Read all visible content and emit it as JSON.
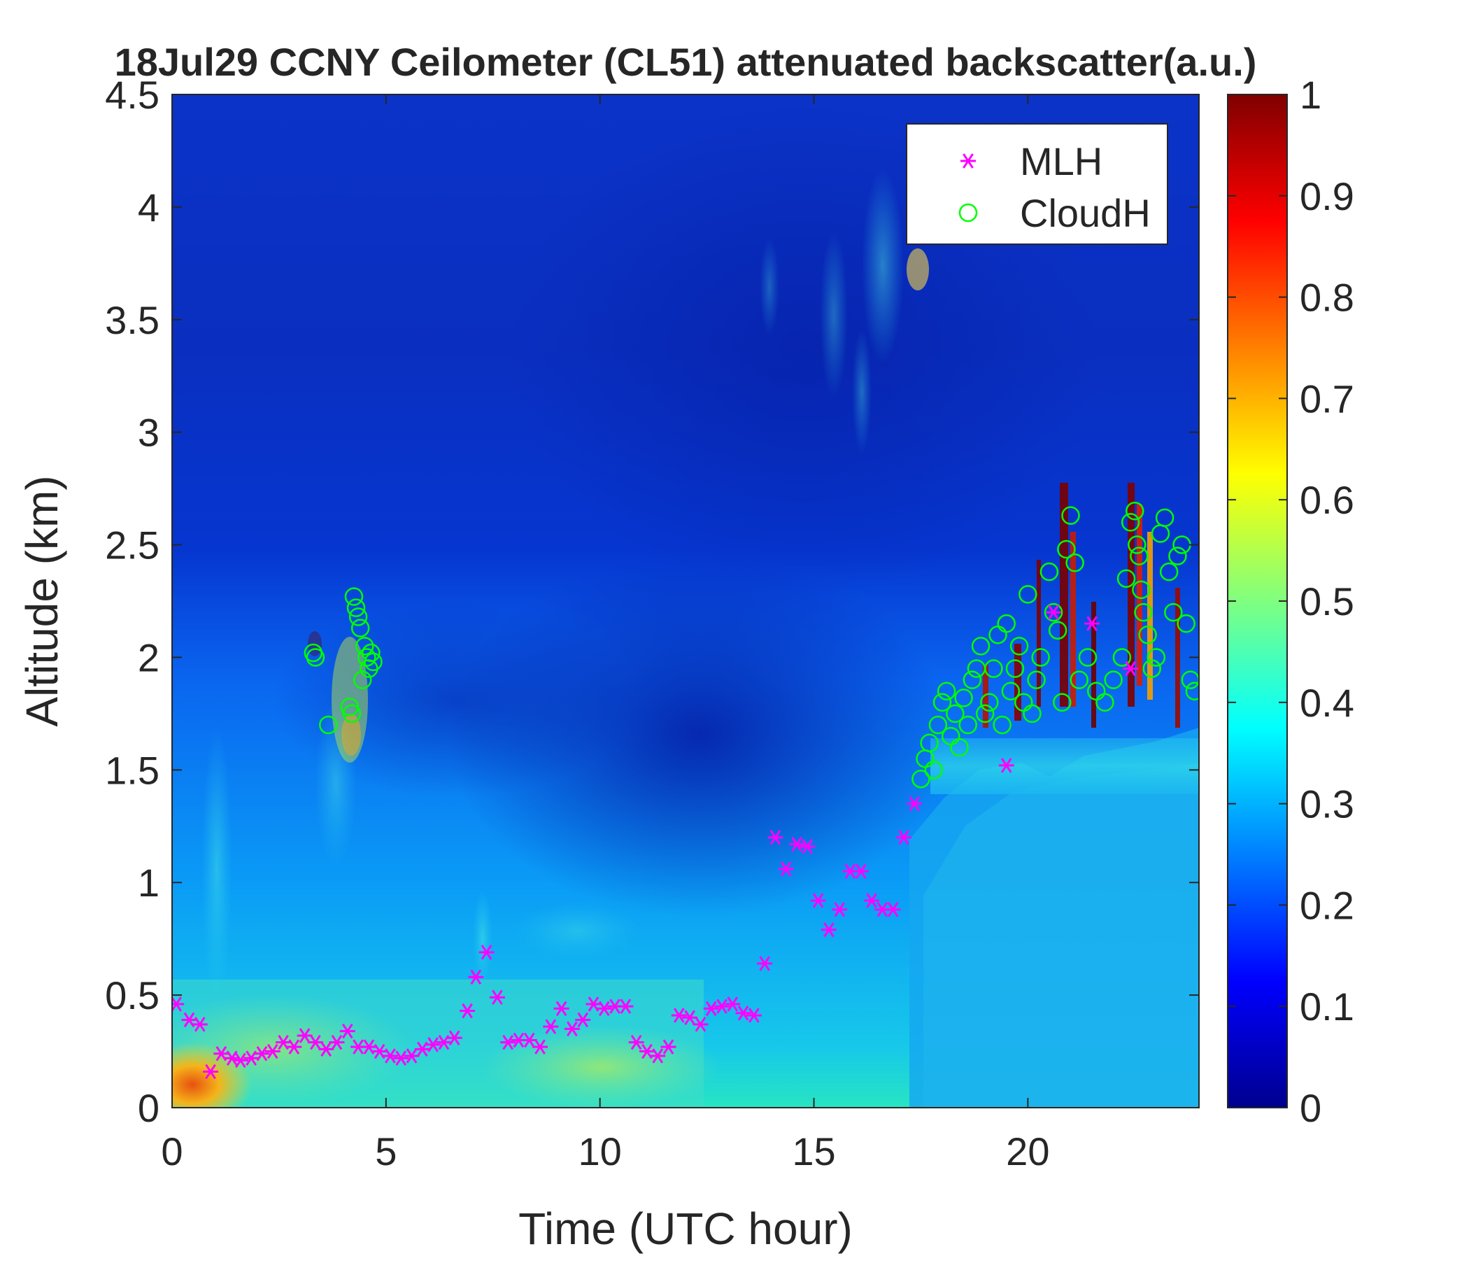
{
  "chart_data": {
    "type": "heatmap",
    "title": "18Jul29 CCNY Ceilometer (CL51) attenuated backscatter(a.u.)",
    "xlabel": "Time (UTC hour)",
    "ylabel": "Altitude (km)",
    "xlim": [
      0,
      24
    ],
    "ylim": [
      0,
      4.5
    ],
    "xticks": [
      0,
      5,
      10,
      15,
      20
    ],
    "xtick_labels": [
      "0",
      "5",
      "10",
      "15",
      "20"
    ],
    "yticks": [
      0,
      0.5,
      1,
      1.5,
      2,
      2.5,
      3,
      3.5,
      4,
      4.5
    ],
    "ytick_labels": [
      "0",
      "0.5",
      "1",
      "1.5",
      "2",
      "2.5",
      "3",
      "3.5",
      "4",
      "4.5"
    ],
    "colorbar": {
      "colormap": "jet",
      "range": [
        0,
        1
      ],
      "ticks": [
        0,
        0.1,
        0.2,
        0.3,
        0.4,
        0.5,
        0.6,
        0.7,
        0.8,
        0.9,
        1
      ],
      "tick_labels": [
        "0",
        "0.1",
        "0.2",
        "0.3",
        "0.4",
        "0.5",
        "0.6",
        "0.7",
        "0.8",
        "0.9",
        "1"
      ]
    },
    "legend": {
      "placement": "top-right",
      "entries": [
        {
          "label": "MLH",
          "marker": "asterisk",
          "color": "#ff00ff"
        },
        {
          "label": "CloudH",
          "marker": "circle",
          "color": "#00ff00"
        }
      ]
    },
    "series": [
      {
        "name": "MLH",
        "x": [
          0.1,
          0.4,
          0.65,
          0.9,
          1.15,
          1.4,
          1.6,
          1.85,
          2.1,
          2.35,
          2.6,
          2.85,
          3.1,
          3.35,
          3.6,
          3.85,
          4.1,
          4.35,
          4.6,
          4.85,
          5.1,
          5.35,
          5.6,
          5.85,
          6.1,
          6.35,
          6.6,
          6.9,
          7.1,
          7.35,
          7.6,
          7.85,
          8.1,
          8.35,
          8.6,
          8.85,
          9.1,
          9.35,
          9.6,
          9.85,
          10.1,
          10.35,
          10.6,
          10.85,
          11.1,
          11.35,
          11.6,
          11.85,
          12.1,
          12.35,
          12.6,
          12.85,
          13.1,
          13.35,
          13.6,
          13.85,
          14.1,
          14.35,
          14.6,
          14.85,
          15.1,
          15.35,
          15.6,
          15.85,
          16.1,
          16.35,
          16.6,
          16.85,
          17.1,
          17.35,
          19.5,
          20.6,
          21.5,
          22.4
        ],
        "y": [
          0.46,
          0.39,
          0.37,
          0.16,
          0.24,
          0.22,
          0.21,
          0.22,
          0.24,
          0.25,
          0.29,
          0.27,
          0.32,
          0.29,
          0.26,
          0.29,
          0.34,
          0.27,
          0.27,
          0.25,
          0.23,
          0.22,
          0.23,
          0.26,
          0.28,
          0.29,
          0.31,
          0.43,
          0.58,
          0.69,
          0.49,
          0.29,
          0.3,
          0.3,
          0.27,
          0.36,
          0.44,
          0.35,
          0.39,
          0.46,
          0.44,
          0.45,
          0.45,
          0.29,
          0.25,
          0.23,
          0.27,
          0.41,
          0.4,
          0.37,
          0.44,
          0.45,
          0.46,
          0.42,
          0.41,
          0.64,
          1.2,
          1.06,
          1.17,
          1.16,
          0.92,
          0.79,
          0.88,
          1.05,
          1.05,
          0.92,
          0.88,
          0.88,
          1.2,
          1.35,
          1.52,
          2.2,
          2.15,
          1.95
        ]
      },
      {
        "name": "CloudH",
        "x": [
          3.3,
          3.35,
          3.65,
          4.15,
          4.2,
          4.25,
          4.3,
          4.35,
          4.4,
          4.45,
          4.5,
          4.55,
          4.6,
          4.65,
          4.7,
          17.5,
          17.6,
          17.7,
          17.8,
          17.9,
          18.0,
          18.1,
          18.2,
          18.3,
          18.4,
          18.5,
          18.6,
          18.7,
          18.8,
          18.9,
          19.0,
          19.1,
          19.2,
          19.3,
          19.4,
          19.5,
          19.6,
          19.7,
          19.8,
          19.9,
          20.0,
          20.1,
          20.2,
          20.3,
          20.5,
          20.6,
          20.7,
          20.8,
          20.9,
          21.0,
          21.1,
          21.2,
          21.4,
          21.6,
          21.8,
          22.0,
          22.2,
          22.3,
          22.4,
          22.5,
          22.55,
          22.6,
          22.65,
          22.7,
          22.8,
          22.9,
          23.0,
          23.1,
          23.2,
          23.3,
          23.4,
          23.5,
          23.6,
          23.7,
          23.8,
          23.9
        ],
        "y": [
          2.02,
          2.0,
          1.7,
          1.78,
          1.75,
          2.27,
          2.22,
          2.18,
          2.13,
          1.9,
          2.05,
          2.0,
          1.95,
          2.02,
          1.98,
          1.46,
          1.55,
          1.62,
          1.5,
          1.7,
          1.8,
          1.85,
          1.65,
          1.75,
          1.6,
          1.82,
          1.7,
          1.9,
          1.95,
          2.05,
          1.75,
          1.8,
          1.95,
          2.1,
          1.7,
          2.15,
          1.85,
          1.95,
          2.05,
          1.8,
          2.28,
          1.75,
          1.9,
          2.0,
          2.38,
          2.2,
          2.12,
          1.8,
          2.48,
          2.63,
          2.42,
          1.9,
          2.0,
          1.85,
          1.8,
          1.9,
          2.0,
          2.35,
          2.6,
          2.65,
          2.5,
          2.45,
          2.3,
          2.2,
          2.1,
          1.95,
          2.0,
          2.55,
          2.62,
          2.38,
          2.2,
          2.45,
          2.5,
          2.15,
          1.9,
          1.85
        ]
      }
    ]
  }
}
